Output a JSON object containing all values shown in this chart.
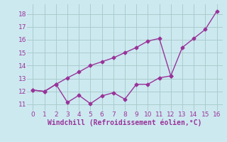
{
  "line1_x": [
    0,
    1,
    2,
    3,
    4,
    5,
    6,
    7,
    8,
    9,
    10,
    11,
    12,
    13,
    14,
    15,
    16
  ],
  "line1_y": [
    12.1,
    12.0,
    12.55,
    13.05,
    13.5,
    14.0,
    14.3,
    14.6,
    15.0,
    15.4,
    15.9,
    16.1,
    13.2,
    15.4,
    16.1,
    16.8,
    18.2
  ],
  "line2_x": [
    0,
    1,
    2,
    3,
    4,
    5,
    6,
    7,
    8,
    9,
    10,
    11,
    12
  ],
  "line2_y": [
    12.1,
    12.0,
    12.55,
    11.15,
    11.7,
    11.05,
    11.65,
    11.9,
    11.4,
    12.55,
    12.55,
    13.05,
    13.2
  ],
  "line_color": "#993399",
  "background_color": "#cce9f0",
  "grid_color": "#aacccc",
  "xlabel": "Windchill (Refroidissement éolien,°C)",
  "xlim": [
    -0.5,
    16.5
  ],
  "ylim": [
    10.5,
    18.75
  ],
  "yticks": [
    11,
    12,
    13,
    14,
    15,
    16,
    17,
    18
  ],
  "xticks": [
    0,
    1,
    2,
    3,
    4,
    5,
    6,
    7,
    8,
    9,
    10,
    11,
    12,
    13,
    14,
    15,
    16
  ],
  "marker": "D",
  "marker_size": 2.5,
  "line_width": 1.0,
  "xlabel_fontsize": 7,
  "tick_fontsize": 6.5,
  "xlabel_color": "#993399",
  "tick_color": "#993399"
}
